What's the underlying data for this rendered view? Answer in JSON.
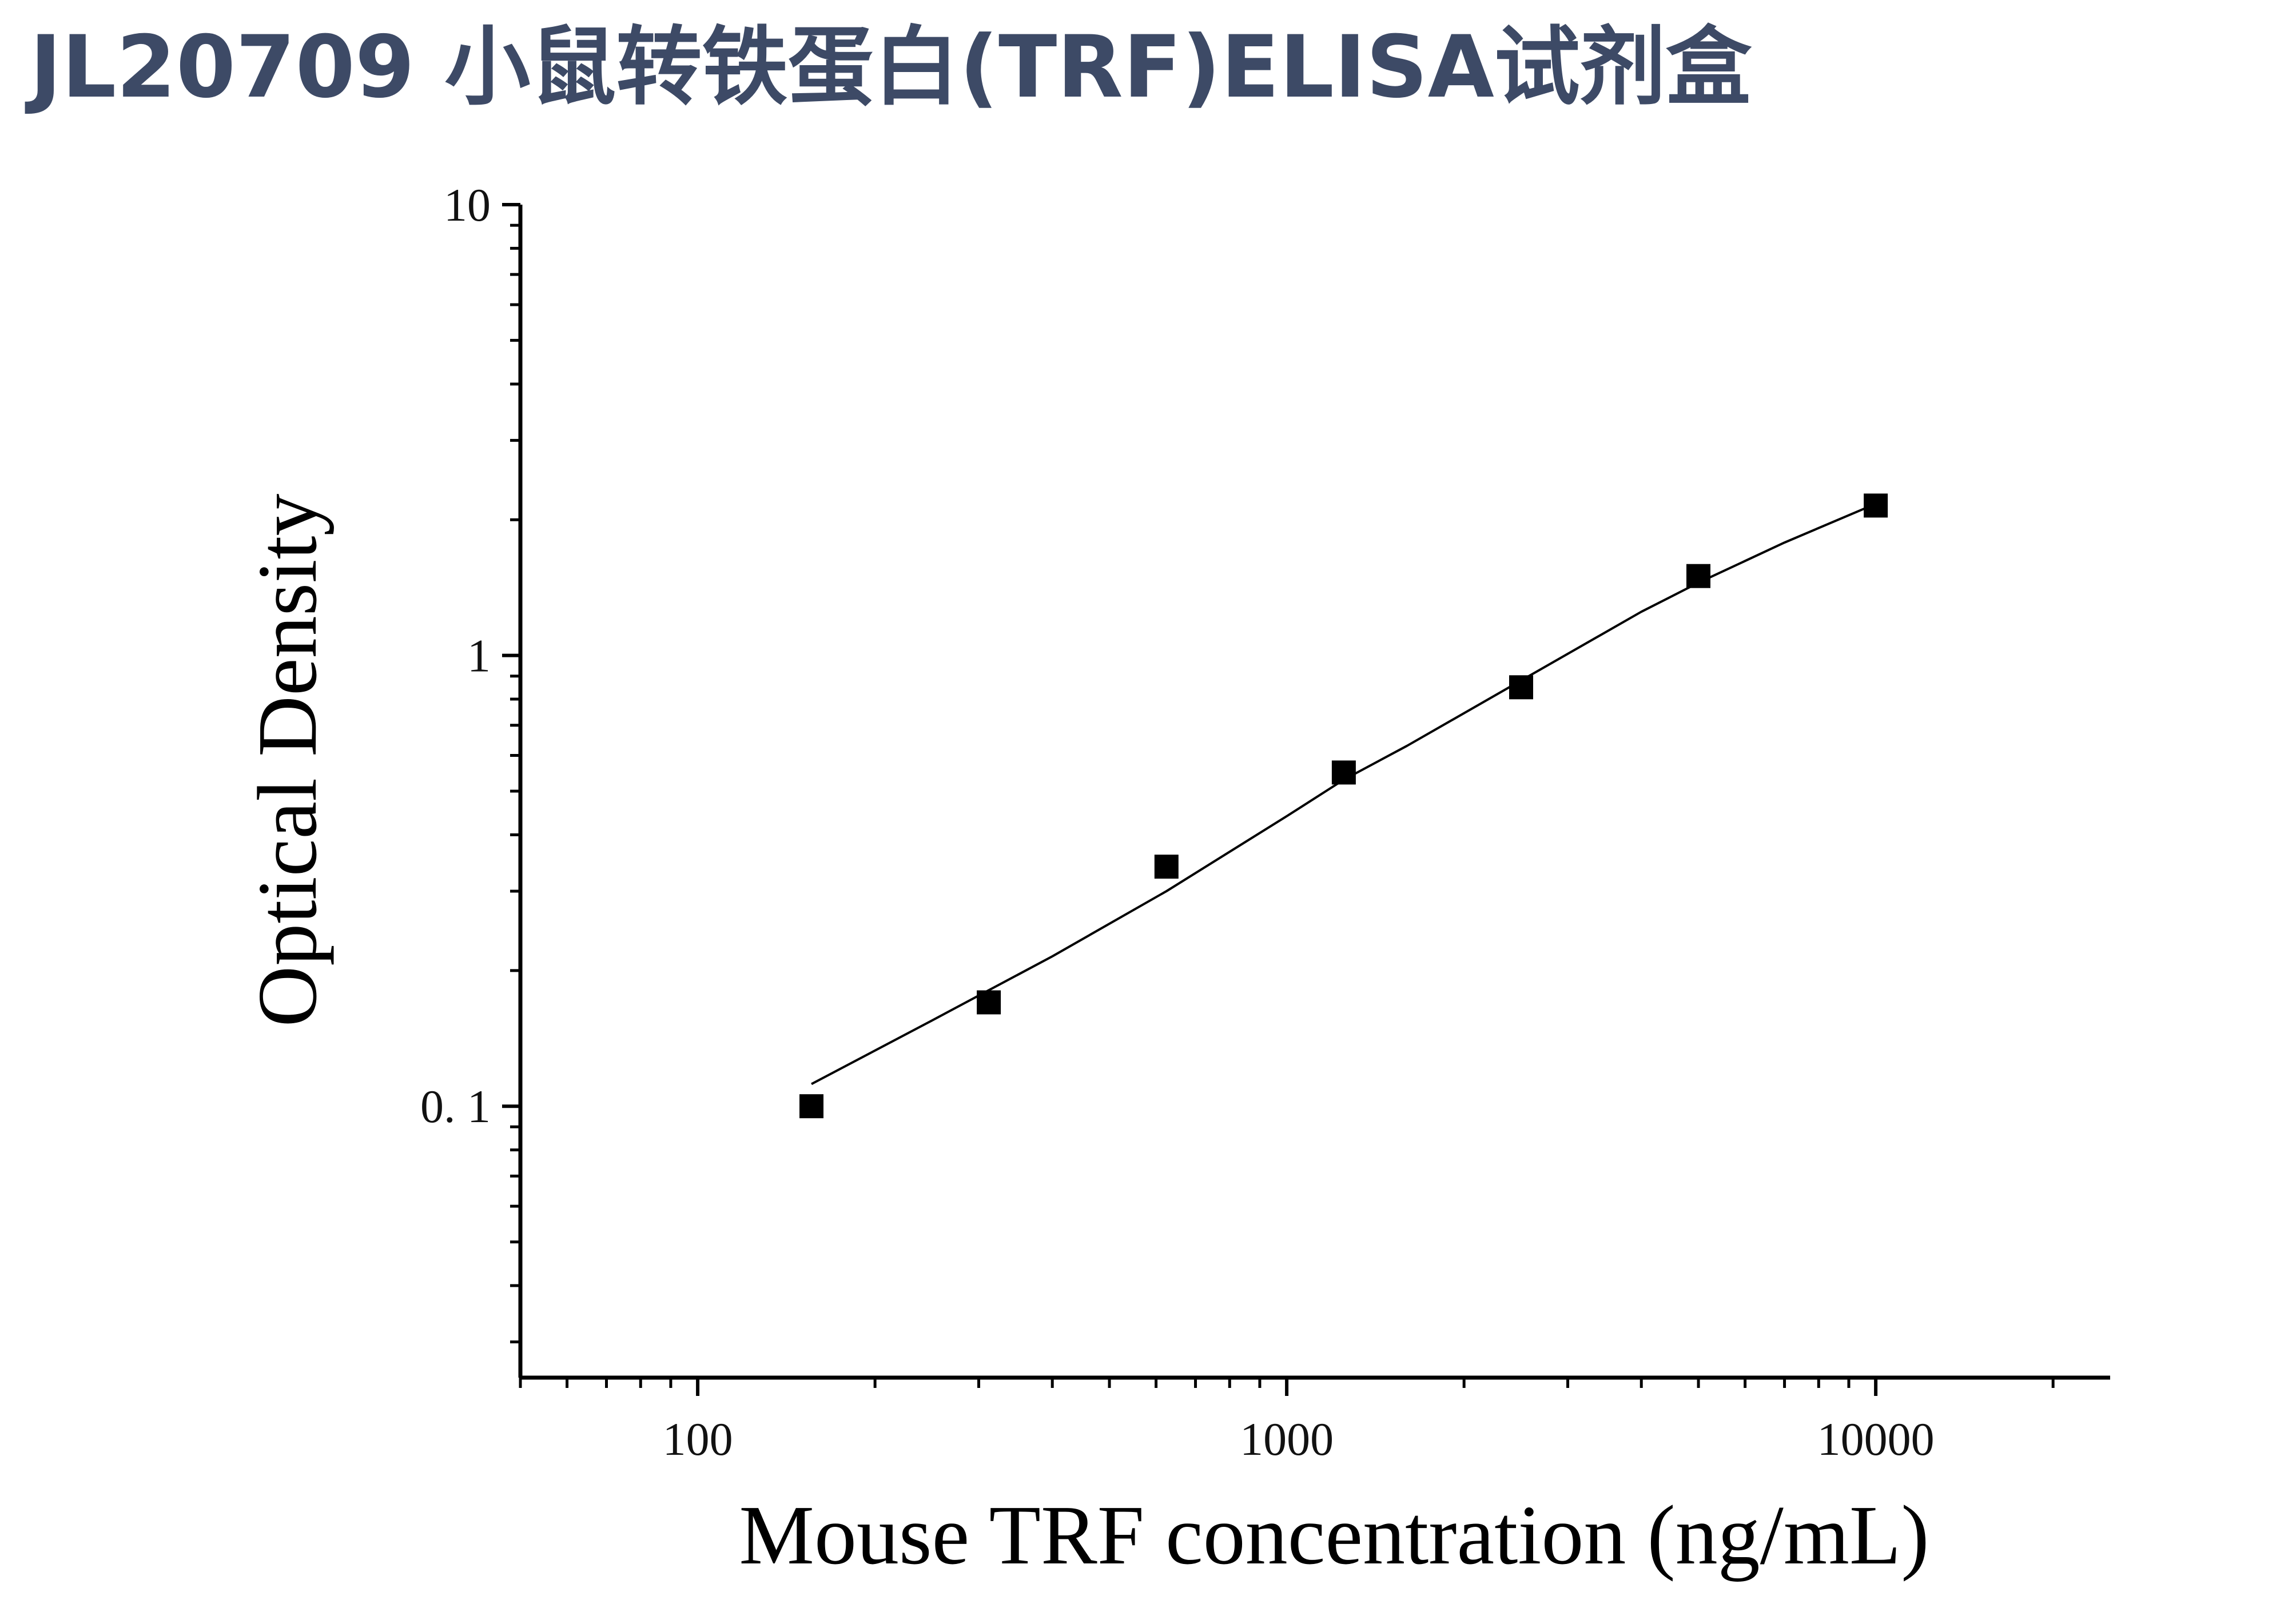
{
  "page": {
    "title": "JL20709 小鼠转铁蛋白(TRF)ELISA试剂盒"
  },
  "colors": {
    "title": "#3d4a66",
    "axis": "#000000",
    "marker": "#000000",
    "curve": "#000000"
  },
  "chart_data": {
    "type": "scatter",
    "title": "",
    "xlabel": "Mouse TRF concentration (ng/mL)",
    "ylabel": "Optical Density",
    "xscale": "log",
    "yscale": "log",
    "xlim": [
      50,
      25000
    ],
    "ylim": [
      0.025,
      10
    ],
    "xticks": [
      {
        "value": 100,
        "label": "100"
      },
      {
        "value": 1000,
        "label": "1000"
      },
      {
        "value": 10000,
        "label": "10000"
      }
    ],
    "yticks": [
      {
        "value": 0.1,
        "label": "0. 1"
      },
      {
        "value": 1,
        "label": "1"
      },
      {
        "value": 10,
        "label": "10"
      }
    ],
    "grid": false,
    "legend": "none",
    "series": [
      {
        "marker": "square",
        "x": [
          156,
          312,
          625,
          1250,
          2500,
          5000,
          10000
        ],
        "y": [
          0.1,
          0.17,
          0.34,
          0.55,
          0.85,
          1.5,
          2.15
        ]
      }
    ],
    "fit_curve": {
      "type": "line",
      "x": [
        156,
        250,
        400,
        625,
        1000,
        1250,
        1600,
        2500,
        4000,
        5000,
        7000,
        10000
      ],
      "y": [
        0.112,
        0.155,
        0.215,
        0.3,
        0.44,
        0.53,
        0.63,
        0.88,
        1.25,
        1.45,
        1.78,
        2.17
      ]
    }
  }
}
